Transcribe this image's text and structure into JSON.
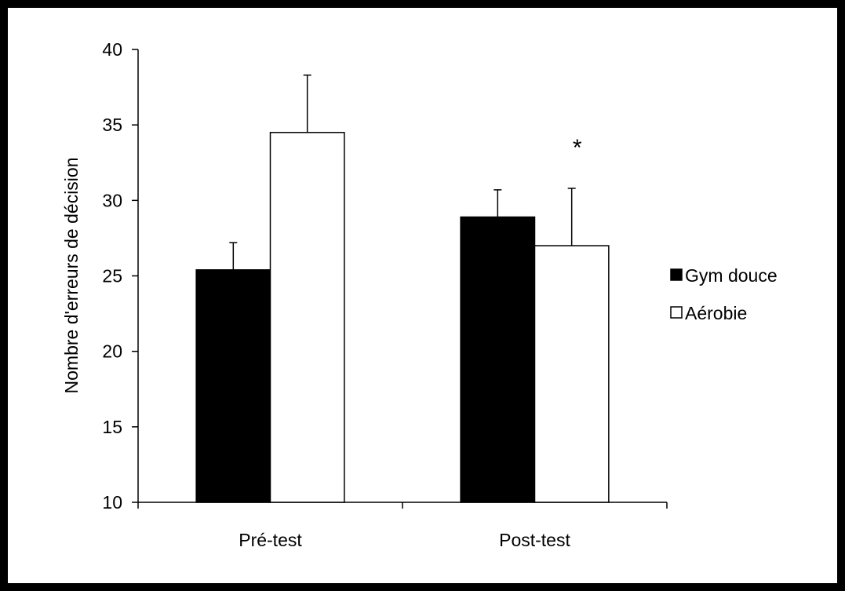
{
  "chart_data": {
    "type": "bar",
    "title": "",
    "xlabel": "",
    "ylabel": "Nombre d'erreurs de décision",
    "ylim": [
      10,
      40
    ],
    "yticks": [
      10,
      15,
      20,
      25,
      30,
      35,
      40
    ],
    "categories": [
      "Pré-test",
      "Post-test"
    ],
    "series": [
      {
        "name": "Gym douce",
        "values": [
          25.4,
          28.9
        ],
        "errors": [
          1.8,
          1.8
        ],
        "color": "#000000"
      },
      {
        "name": "Aérobie",
        "values": [
          34.5,
          27.0
        ],
        "errors": [
          3.8,
          3.8
        ],
        "color": "#ffffff"
      }
    ],
    "annotations": [
      {
        "text": "*",
        "category": "Post-test",
        "series": "Aérobie"
      }
    ],
    "legend": "right",
    "grid": false
  },
  "colors": {
    "frame": "#000000",
    "axis": "#000000",
    "bar_outline": "#000000"
  }
}
